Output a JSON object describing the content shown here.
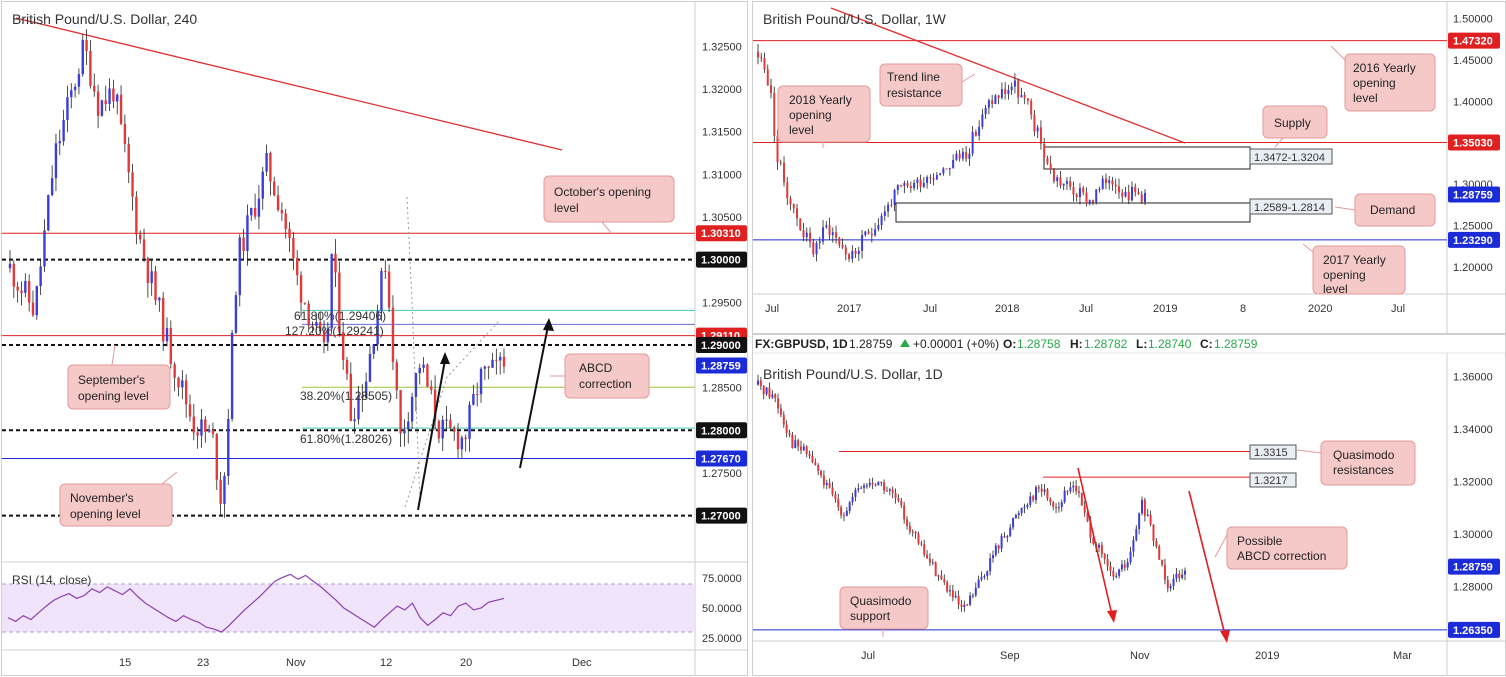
{
  "colors": {
    "bull": "#3b3fd6",
    "bear": "#e03a3a",
    "red_line": "#e02020",
    "blue_line": "#1c2bd8",
    "note_bg": "#f6c9c9",
    "note_border": "#e39a9a",
    "rsi_bg": "#efe4fa",
    "rsi_line": "#8b3fb0",
    "fib_teal": "#3ac9b5",
    "fib_blue": "#6a6ae0",
    "fib_green": "#9bc43a"
  },
  "chart_data": [
    {
      "id": "h4",
      "type": "candlestick",
      "title": "British Pound/U.S. Dollar, 240",
      "ylim": [
        1.2655,
        1.3295
      ],
      "y_ticks": [
        "1.32500",
        "1.32000",
        "1.31500",
        "1.31000",
        "1.30500",
        "1.29500",
        "1.28500",
        "1.27500"
      ],
      "x_ticks": [
        "15",
        "23",
        "Nov",
        "12",
        "20",
        "Dec"
      ],
      "price_tags": [
        {
          "value": "1.30310",
          "kind": "red"
        },
        {
          "value": "1.30000",
          "kind": "black"
        },
        {
          "value": "1.29110",
          "kind": "red"
        },
        {
          "value": "1.29000",
          "kind": "black"
        },
        {
          "value": "1.28759",
          "kind": "blue"
        },
        {
          "value": "1.28000",
          "kind": "black"
        },
        {
          "value": "1.27670",
          "kind": "blue"
        },
        {
          "value": "1.27000",
          "kind": "black"
        }
      ],
      "levels": [
        {
          "price": 1.3031,
          "style": "red"
        },
        {
          "price": 1.3,
          "style": "dashed"
        },
        {
          "price": 1.2911,
          "style": "red"
        },
        {
          "price": 1.29,
          "style": "dashed"
        },
        {
          "price": 1.28,
          "style": "dashed"
        },
        {
          "price": 1.2767,
          "style": "blue"
        },
        {
          "price": 1.27,
          "style": "dashed"
        }
      ],
      "fib_labels": [
        {
          "text": "61.80%(1.29406)",
          "price": 1.29406,
          "color": "teal"
        },
        {
          "text": "127.20%(1.29241)",
          "price": 1.29241,
          "color": "blue"
        },
        {
          "text": "38.20%(1.28505)",
          "price": 1.28505,
          "color": "green"
        },
        {
          "text": "61.80%(1.28026)",
          "price": 1.28026,
          "color": "teal"
        }
      ],
      "notes": [
        {
          "lines": [
            "October's opening",
            "level"
          ]
        },
        {
          "lines": [
            "September's",
            "opening level"
          ]
        },
        {
          "lines": [
            "ABCD",
            "correction"
          ]
        },
        {
          "lines": [
            "November's",
            "opening level"
          ]
        }
      ],
      "rsi": {
        "label": "RSI (14, close)",
        "y_ticks": [
          "75.0000",
          "50.0000",
          "25.0000"
        ],
        "values": [
          40,
          36,
          42,
          38,
          45,
          52,
          58,
          62,
          65,
          60,
          63,
          70,
          66,
          72,
          68,
          64,
          70,
          62,
          55,
          50,
          45,
          40,
          36,
          42,
          38,
          35,
          30,
          28,
          25,
          32,
          40,
          48,
          55,
          62,
          70,
          78,
          82,
          85,
          80,
          84,
          78,
          72,
          65,
          58,
          50,
          45,
          40,
          35,
          30,
          38,
          45,
          52,
          48,
          55,
          40,
          32,
          38,
          45,
          42,
          52,
          55,
          48,
          50,
          56,
          58,
          60
        ]
      }
    },
    {
      "id": "w1",
      "type": "candlestick",
      "title": "British Pound/U.S. Dollar, 1W",
      "ylim": [
        1.17,
        1.515
      ],
      "y_ticks": [
        "1.50000",
        "1.45000",
        "1.40000",
        "1.35000",
        "1.30000",
        "1.25000",
        "1.20000"
      ],
      "x_ticks": [
        "Jul",
        "2017",
        "Jul",
        "2018",
        "Jul",
        "2019",
        "8",
        "2020",
        "Jul"
      ],
      "price_tags": [
        {
          "value": "1.47320",
          "kind": "red"
        },
        {
          "value": "1.35030",
          "kind": "red"
        },
        {
          "value": "1.28759",
          "kind": "blue"
        },
        {
          "value": "1.23290",
          "kind": "blue"
        }
      ],
      "zones": [
        "1.3472-1.3204",
        "1.2589-1.2814"
      ],
      "notes": [
        {
          "lines": [
            "2016 Yearly",
            "opening",
            "level"
          ]
        },
        {
          "lines": [
            "Trend line",
            "resistance"
          ]
        },
        {
          "lines": [
            "2018 Yearly",
            "opening",
            "level"
          ]
        },
        {
          "lines": [
            "Supply"
          ]
        },
        {
          "lines": [
            "Demand"
          ]
        },
        {
          "lines": [
            "2017 Yearly",
            "opening",
            "level"
          ]
        }
      ]
    },
    {
      "id": "d1",
      "type": "candlestick",
      "title": "British Pound/U.S. Dollar, 1D",
      "header": {
        "symbol": "FX:GBPUSD, 1D",
        "last": "1.28759",
        "change": "+0.00001 (+0%)",
        "o_label": "O:",
        "o": "1.28758",
        "h_label": "H:",
        "h": "1.28782",
        "l_label": "L:",
        "l": "1.28740",
        "c_label": "C:",
        "c": "1.28759"
      },
      "ylim": [
        1.26,
        1.366
      ],
      "y_ticks": [
        "1.36000",
        "1.34000",
        "1.32000",
        "1.30000",
        "1.28000"
      ],
      "x_ticks": [
        "Jul",
        "Sep",
        "Nov",
        "2019",
        "Mar"
      ],
      "price_tags": [
        {
          "value": "1.28759",
          "kind": "blue"
        },
        {
          "value": "1.26350",
          "kind": "blue"
        }
      ],
      "line_tags": [
        "1.3315",
        "1.3217"
      ],
      "notes": [
        {
          "lines": [
            "Quasimodo",
            "resistances"
          ]
        },
        {
          "lines": [
            "Possible",
            "ABCD correction"
          ]
        },
        {
          "lines": [
            "Quasimodo",
            "support"
          ]
        }
      ]
    }
  ]
}
